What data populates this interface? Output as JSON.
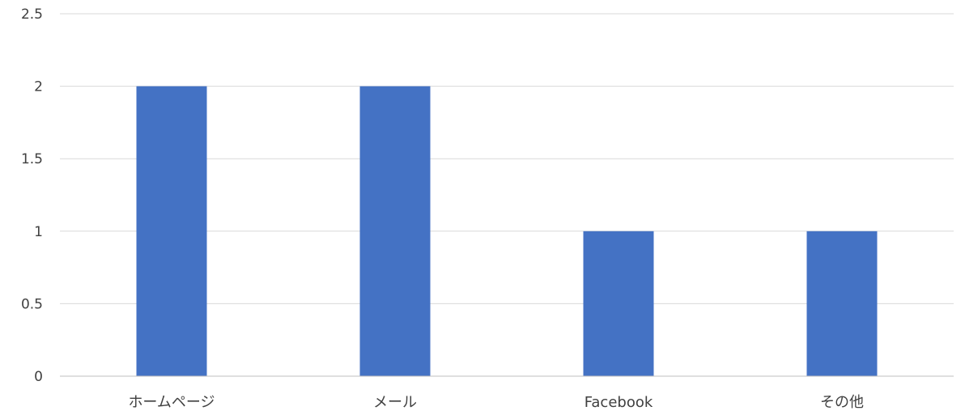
{
  "chart_data": {
    "type": "bar",
    "categories": [
      "ホームページ",
      "メール",
      "Facebook",
      "その他"
    ],
    "values": [
      2,
      2,
      1,
      1
    ],
    "ylim": [
      0,
      2.5
    ],
    "yticks": [
      0,
      0.5,
      1,
      1.5,
      2,
      2.5
    ],
    "ytick_labels": [
      "0",
      "0.5",
      "1",
      "1.5",
      "2",
      "2.5"
    ],
    "grid": true,
    "colors": {
      "bar": "#4472c4",
      "grid": "#d9d9d9",
      "text": "#404040"
    }
  }
}
